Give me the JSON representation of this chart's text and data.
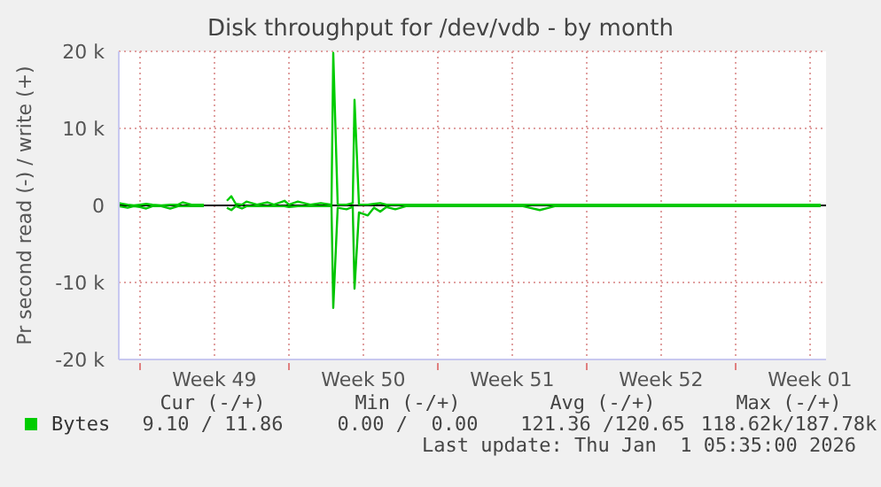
{
  "chart_data": {
    "type": "line",
    "title": "Disk throughput for /dev/vdb - by month",
    "ylabel": "Pr second read (-) / write (+)",
    "x": [
      "2025-11-30",
      "2025-11-30T10:00",
      "2025-11-30T17:00",
      "2025-12-01",
      "2025-12-01T07:00",
      "2025-12-01T14:00",
      "2025-12-02",
      "2025-12-02T10:00",
      "2025-12-02T19:00",
      "2025-12-03",
      "2025-12-03T10:00",
      "2025-12-03T19:00",
      "2025-12-04",
      "2025-12-04T01:00",
      "2025-12-05T02:00",
      "2025-12-05T07:00",
      "2025-12-05T12:00",
      "2025-12-05T19:00",
      "2025-12-06",
      "2025-12-06T12:00",
      "2025-12-07",
      "2025-12-07T07:00",
      "2025-12-07T19:00",
      "2025-12-08",
      "2025-12-08T10:00",
      "2025-12-09",
      "2025-12-09T12:00",
      "2025-12-10",
      "2025-12-10T02:00",
      "2025-12-10T07:00",
      "2025-12-10T17:00",
      "2025-12-11",
      "2025-12-11T02:00",
      "2025-12-11T07:00",
      "2025-12-11T17:00",
      "2025-12-12",
      "2025-12-12T07:00",
      "2025-12-12T14:00",
      "2025-12-13",
      "2025-12-13T12:00",
      "2025-12-14",
      "2025-12-15",
      "2025-12-16",
      "2025-12-17",
      "2025-12-18",
      "2025-12-19",
      "2025-12-19T19:00",
      "2025-12-20T12:00",
      "2025-12-21",
      "2025-12-22",
      "2025-12-23",
      "2025-12-25",
      "2025-12-27",
      "2025-12-29",
      "2025-12-31",
      "2026-01-02"
    ],
    "series": [
      {
        "name": "Bytes",
        "color": "#00cc00",
        "values": [
          300,
          100,
          0,
          100,
          200,
          100,
          0,
          100,
          100,
          400,
          100,
          100,
          100,
          null,
          600,
          1200,
          200,
          100,
          500,
          100,
          400,
          100,
          600,
          100,
          500,
          100,
          300,
          100,
          19800,
          100,
          100,
          300,
          13700,
          100,
          100,
          200,
          300,
          100,
          100,
          100,
          100,
          100,
          100,
          100,
          100,
          100,
          100,
          100,
          100,
          100,
          100,
          100,
          100,
          100,
          100,
          100
        ]
      },
      {
        "color": "#00c400",
        "values": [
          -100,
          -300,
          -100,
          -200,
          -400,
          -100,
          -100,
          -400,
          -100,
          -100,
          -100,
          -100,
          -100,
          null,
          -300,
          -600,
          -100,
          -400,
          -100,
          -100,
          -100,
          -100,
          -100,
          -200,
          -100,
          -100,
          -100,
          -100,
          -13300,
          -300,
          -500,
          -200,
          -10800,
          -900,
          -1300,
          -300,
          -800,
          -200,
          -500,
          -100,
          -100,
          -100,
          -100,
          -100,
          -100,
          -100,
          -600,
          -100,
          -100,
          -100,
          -100,
          -100,
          -100,
          -100,
          -100,
          -100
        ]
      }
    ],
    "xlim": [
      "2025-11-30",
      "2026-01-02T06:00"
    ],
    "xticks": [
      {
        "value": "2025-12-01",
        "label": null
      },
      {
        "value": "2025-12-04T12:00",
        "label": "Week 49"
      },
      {
        "value": "2025-12-08",
        "label": null
      },
      {
        "value": "2025-12-11T12:00",
        "label": "Week 50"
      },
      {
        "value": "2025-12-15",
        "label": null
      },
      {
        "value": "2025-12-18T12:00",
        "label": "Week 51"
      },
      {
        "value": "2025-12-22",
        "label": null
      },
      {
        "value": "2025-12-25T12:00",
        "label": "Week 52"
      },
      {
        "value": "2025-12-29",
        "label": null
      },
      {
        "value": "2026-01-01T12:00",
        "label": "Week 01"
      }
    ],
    "ylim": [
      -20000,
      20000
    ],
    "yticks": [
      {
        "value": -20000,
        "label": "-20 k"
      },
      {
        "value": -10000,
        "label": "-10 k"
      },
      {
        "value": 0,
        "label": "0"
      },
      {
        "value": 10000,
        "label": "10 k"
      },
      {
        "value": 20000,
        "label": "20 k"
      }
    ],
    "grid": true,
    "legend": "bottom",
    "marker": "none",
    "line_style": "solid",
    "ref_lines": [
      {
        "axis": "y",
        "value": 0,
        "color": "#000000"
      }
    ],
    "annotations": [
      "Cur (-/+)",
      "Min (-/+)",
      "Avg (-/+)",
      "Max (-/+)",
      "9.10 / 11.86",
      "0.00 /  0.00",
      "121.36 /120.65",
      "118.62k/187.78k",
      "Last update: Thu Jan  1 05:35:00 2026"
    ]
  }
}
